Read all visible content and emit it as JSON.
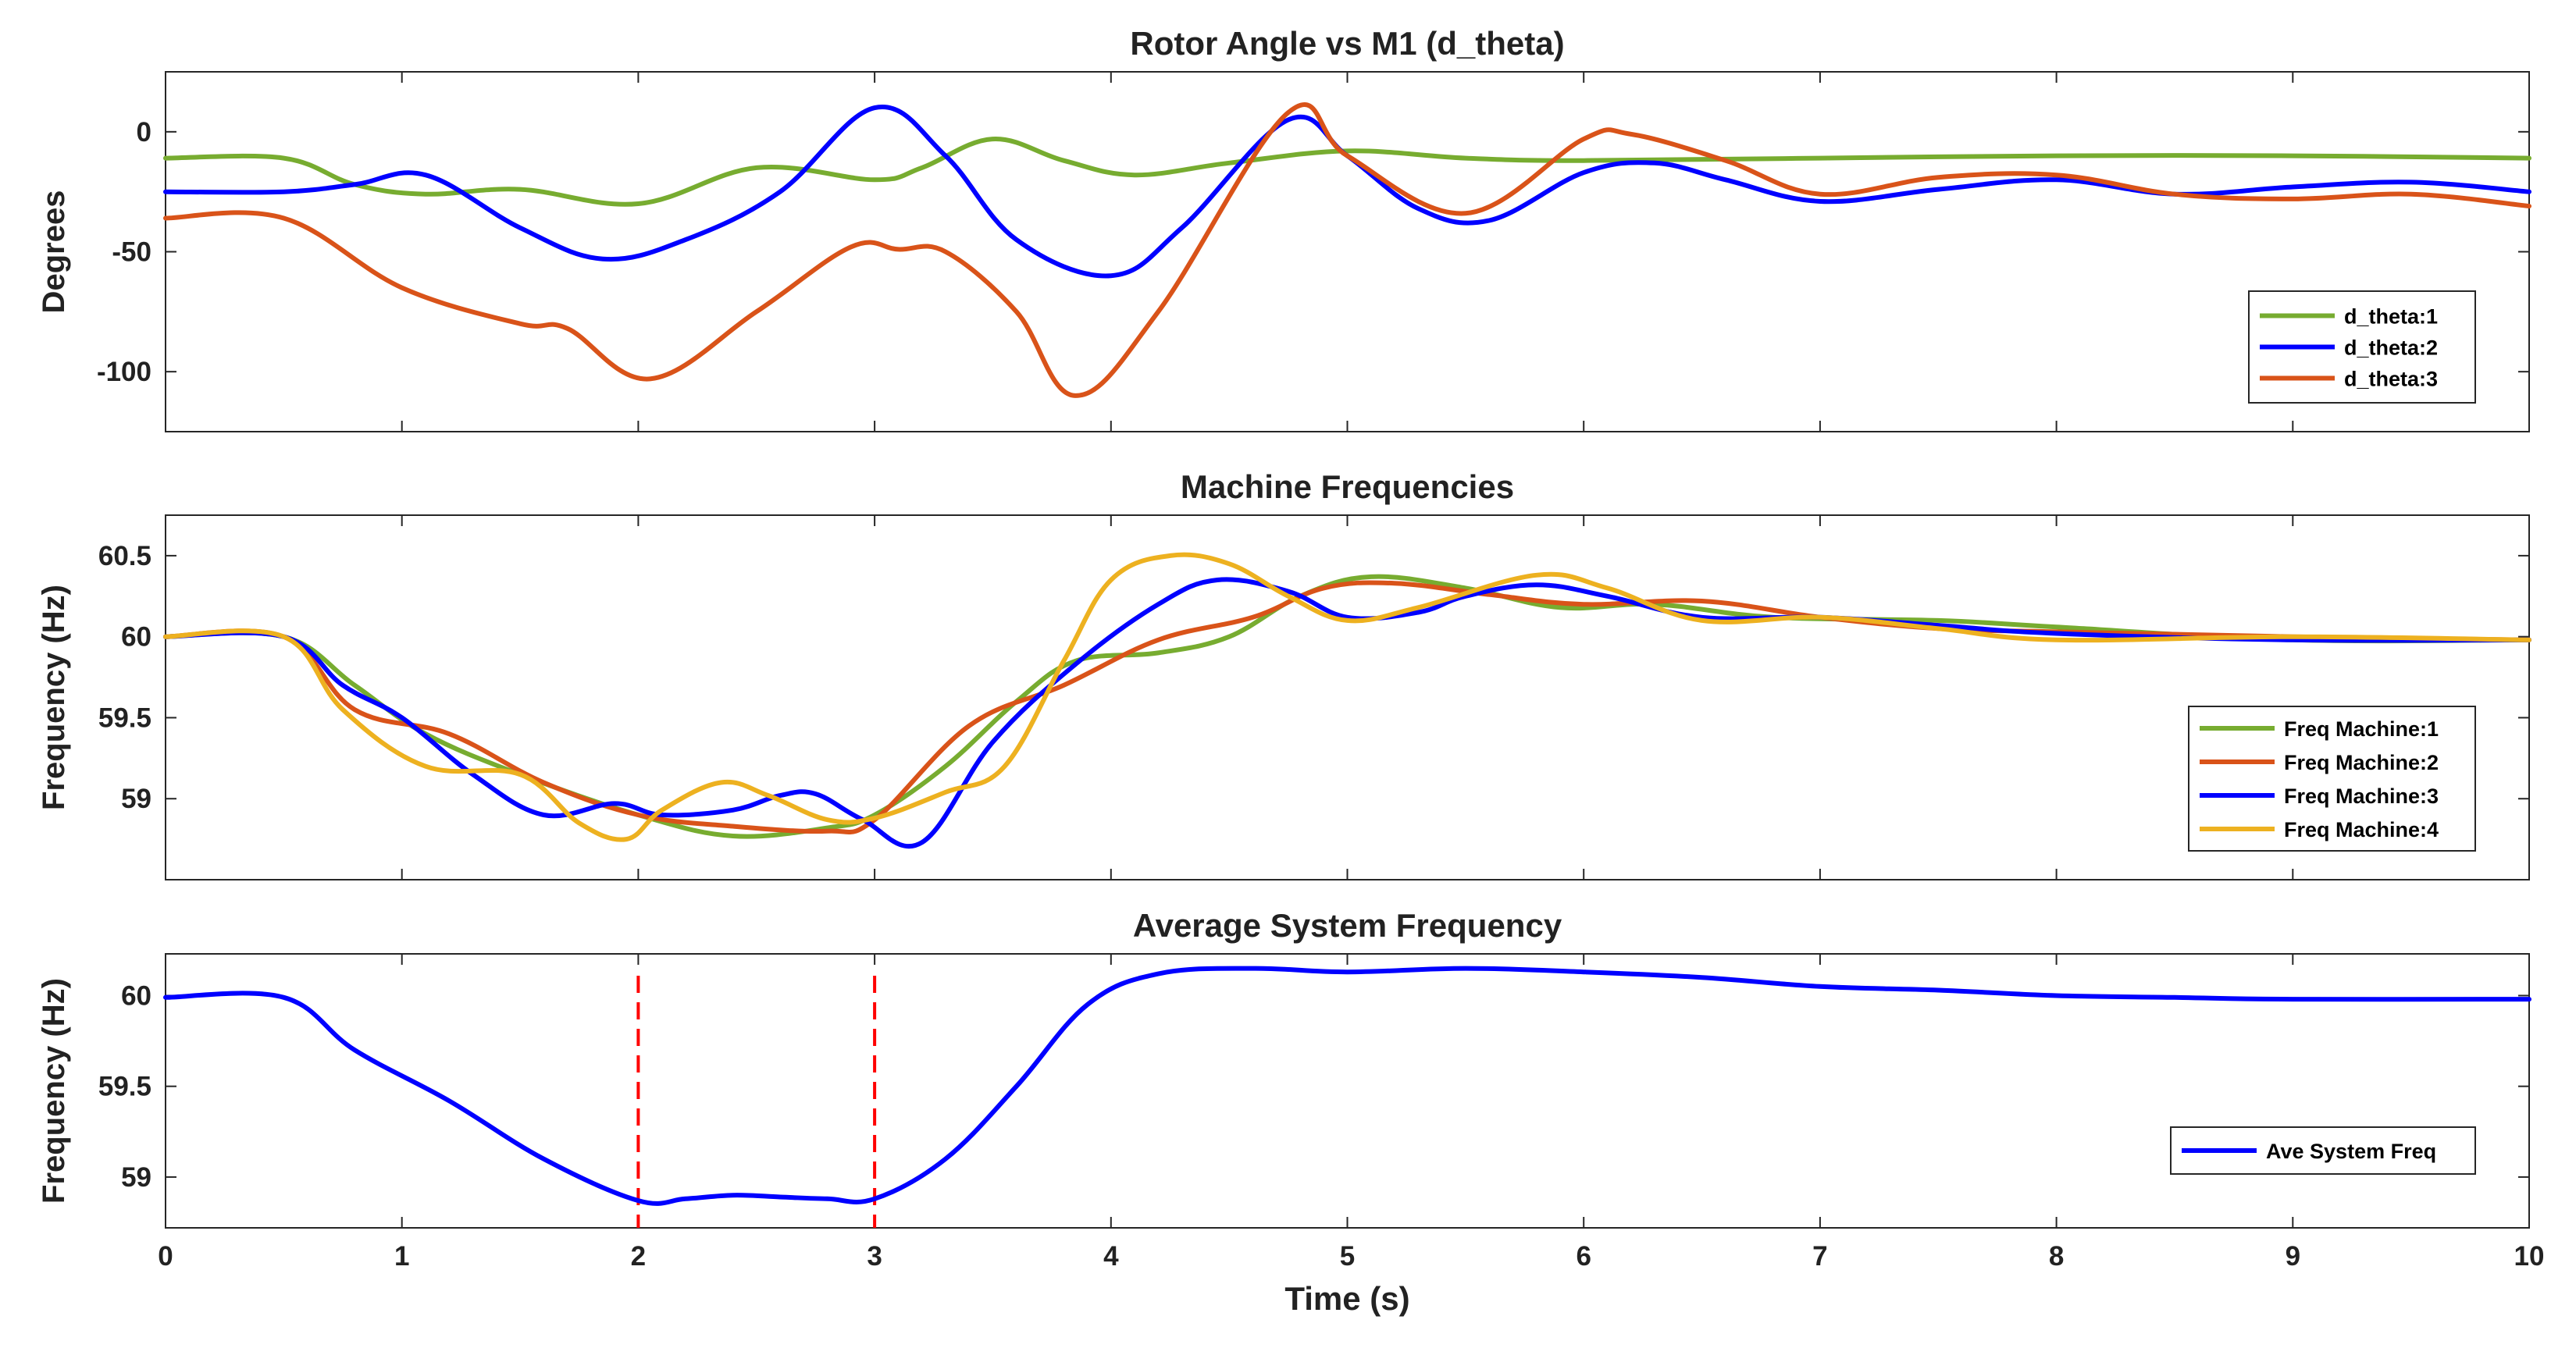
{
  "chart_data": [
    {
      "type": "line",
      "title": "Rotor Angle vs M1 (d_theta)",
      "xlabel": "",
      "ylabel": "Degrees",
      "xlim": [
        0,
        10
      ],
      "ylim": [
        -125,
        25
      ],
      "yticks": [
        0,
        -50,
        -100
      ],
      "ytick_labels": [
        "0",
        "-50",
        "-100"
      ],
      "legend_position": "bottom-right",
      "series": [
        {
          "name": "d_theta:1",
          "color": "#77AC30",
          "x": [
            0,
            0.5,
            0.8,
            1.1,
            1.5,
            2.0,
            2.5,
            3.0,
            3.2,
            3.5,
            3.8,
            4.1,
            4.5,
            5.0,
            5.5,
            6.0,
            7.0,
            8.0,
            9.0,
            10.0
          ],
          "y": [
            -11,
            -11,
            -22,
            -26,
            -24,
            -30,
            -15,
            -20,
            -15,
            -3,
            -12,
            -18,
            -13,
            -8,
            -11,
            -12,
            -11,
            -10,
            -10,
            -11
          ]
        },
        {
          "name": "d_theta:2",
          "color": "#0000FF",
          "x": [
            0,
            0.5,
            0.8,
            1.1,
            1.5,
            1.85,
            2.2,
            2.6,
            3.0,
            3.3,
            3.6,
            4.0,
            4.3,
            4.75,
            5.0,
            5.3,
            5.6,
            6.0,
            6.3,
            6.6,
            7.0,
            7.5,
            8.0,
            8.5,
            9.0,
            9.5,
            10.0
          ],
          "y": [
            -25,
            -25,
            -22,
            -18,
            -40,
            -53,
            -45,
            -25,
            10,
            -10,
            -45,
            -60,
            -40,
            5,
            -10,
            -32,
            -37,
            -17,
            -13,
            -20,
            -29,
            -24,
            -20,
            -26,
            -23,
            -21,
            -25
          ]
        },
        {
          "name": "d_theta:3",
          "color": "#D95319",
          "x": [
            0,
            0.5,
            1.0,
            1.5,
            1.7,
            2.05,
            2.5,
            2.9,
            3.1,
            3.3,
            3.6,
            3.85,
            4.2,
            4.75,
            5.0,
            5.5,
            6.0,
            6.2,
            6.6,
            7.0,
            7.5,
            8.0,
            8.5,
            9.0,
            9.5,
            10.0
          ],
          "y": [
            -36,
            -36,
            -65,
            -80,
            -82,
            -103,
            -75,
            -48,
            -49,
            -50,
            -75,
            -110,
            -75,
            8,
            -10,
            -34,
            -3,
            -1,
            -12,
            -26,
            -19,
            -18,
            -26,
            -28,
            -26,
            -31
          ]
        }
      ]
    },
    {
      "type": "line",
      "title": "Machine Frequencies",
      "xlabel": "",
      "ylabel": "Frequency (Hz)",
      "xlim": [
        0,
        10
      ],
      "ylim": [
        58.5,
        60.75
      ],
      "yticks": [
        60.5,
        60,
        59.5,
        59
      ],
      "ytick_labels": [
        "60.5",
        "60",
        "59.5",
        "59"
      ],
      "legend_position": "bottom-right",
      "series": [
        {
          "name": "Freq Machine:1",
          "color": "#77AC30",
          "x": [
            0,
            0.5,
            0.8,
            1.1,
            1.5,
            2.0,
            2.4,
            2.8,
            3.0,
            3.3,
            3.6,
            3.85,
            4.2,
            4.5,
            4.8,
            5.1,
            5.5,
            5.9,
            6.3,
            6.8,
            7.5,
            8.0,
            9.0,
            10.0
          ],
          "y": [
            60,
            60,
            59.7,
            59.4,
            59.15,
            58.9,
            58.77,
            58.82,
            58.9,
            59.2,
            59.6,
            59.85,
            59.9,
            60.0,
            60.25,
            60.37,
            60.3,
            60.18,
            60.2,
            60.12,
            60.1,
            60.06,
            59.98,
            59.98
          ]
        },
        {
          "name": "Freq Machine:2",
          "color": "#D95319",
          "x": [
            0,
            0.5,
            0.8,
            1.2,
            1.6,
            2.0,
            2.4,
            2.8,
            3.0,
            3.4,
            3.8,
            4.2,
            4.6,
            4.9,
            5.2,
            5.6,
            6.0,
            6.5,
            7.0,
            7.5,
            8.0,
            9.0,
            10.0
          ],
          "y": [
            60,
            60,
            59.55,
            59.4,
            59.1,
            58.9,
            58.83,
            58.8,
            58.87,
            59.45,
            59.7,
            59.98,
            60.12,
            60.3,
            60.33,
            60.26,
            60.2,
            60.22,
            60.12,
            60.05,
            60.03,
            60.0,
            59.98
          ]
        },
        {
          "name": "Freq Machine:3",
          "color": "#0000FF",
          "x": [
            0,
            0.5,
            0.75,
            1.0,
            1.3,
            1.6,
            1.9,
            2.1,
            2.4,
            2.6,
            2.75,
            2.95,
            3.2,
            3.5,
            3.85,
            4.2,
            4.45,
            4.75,
            5.0,
            5.3,
            5.5,
            5.8,
            6.1,
            6.5,
            7.0,
            7.5,
            8.0,
            9.0,
            10.0
          ],
          "y": [
            60,
            60,
            59.7,
            59.5,
            59.15,
            58.9,
            58.97,
            58.9,
            58.93,
            59.02,
            59.03,
            58.87,
            58.73,
            59.35,
            59.83,
            60.2,
            60.35,
            60.28,
            60.12,
            60.15,
            60.25,
            60.32,
            60.25,
            60.12,
            60.12,
            60.07,
            60.02,
            59.98,
            59.98
          ]
        },
        {
          "name": "Freq Machine:4",
          "color": "#EDB120",
          "x": [
            0,
            0.5,
            0.75,
            1.1,
            1.5,
            1.75,
            1.95,
            2.1,
            2.35,
            2.55,
            2.8,
            3.0,
            3.3,
            3.55,
            3.8,
            4.0,
            4.25,
            4.5,
            4.75,
            5.0,
            5.3,
            5.8,
            6.1,
            6.5,
            7.0,
            7.5,
            8.0,
            9.0,
            10.0
          ],
          "y": [
            60,
            60,
            59.55,
            59.2,
            59.15,
            58.85,
            58.75,
            58.93,
            59.1,
            59.02,
            58.87,
            58.88,
            59.04,
            59.2,
            59.85,
            60.35,
            60.5,
            60.45,
            60.25,
            60.1,
            60.18,
            60.38,
            60.3,
            60.1,
            60.12,
            60.05,
            59.98,
            60.0,
            59.98
          ]
        }
      ]
    },
    {
      "type": "line",
      "title": "Average System Frequency",
      "xlabel": "Time  (s)",
      "ylabel": "Frequency (Hz)",
      "xlim": [
        0,
        10
      ],
      "ylim": [
        58.72,
        60.23
      ],
      "yticks": [
        60,
        59.5,
        59
      ],
      "ytick_labels": [
        "60",
        "59.5",
        "59"
      ],
      "xticks": [
        0,
        1,
        2,
        3,
        4,
        5,
        6,
        7,
        8,
        9,
        10
      ],
      "xtick_labels": [
        "0",
        "1",
        "2",
        "3",
        "4",
        "5",
        "6",
        "7",
        "8",
        "9",
        "10"
      ],
      "vlines": [
        2,
        3
      ],
      "vline_color": "#FF0000",
      "legend_position": "bottom-right",
      "series": [
        {
          "name": "Ave System Freq",
          "color": "#0000FF",
          "x": [
            0,
            0.5,
            0.8,
            1.2,
            1.6,
            2.0,
            2.2,
            2.4,
            2.6,
            2.8,
            3.0,
            3.3,
            3.6,
            3.9,
            4.2,
            4.6,
            5.0,
            5.5,
            6.0,
            6.5,
            7.0,
            7.5,
            8.0,
            8.5,
            9.0,
            10.0
          ],
          "y": [
            59.99,
            59.99,
            59.7,
            59.42,
            59.1,
            58.87,
            58.88,
            58.9,
            58.89,
            58.88,
            58.88,
            59.1,
            59.5,
            59.95,
            60.12,
            60.15,
            60.13,
            60.15,
            60.13,
            60.1,
            60.05,
            60.03,
            60.0,
            59.99,
            59.98,
            59.98
          ]
        }
      ]
    }
  ]
}
